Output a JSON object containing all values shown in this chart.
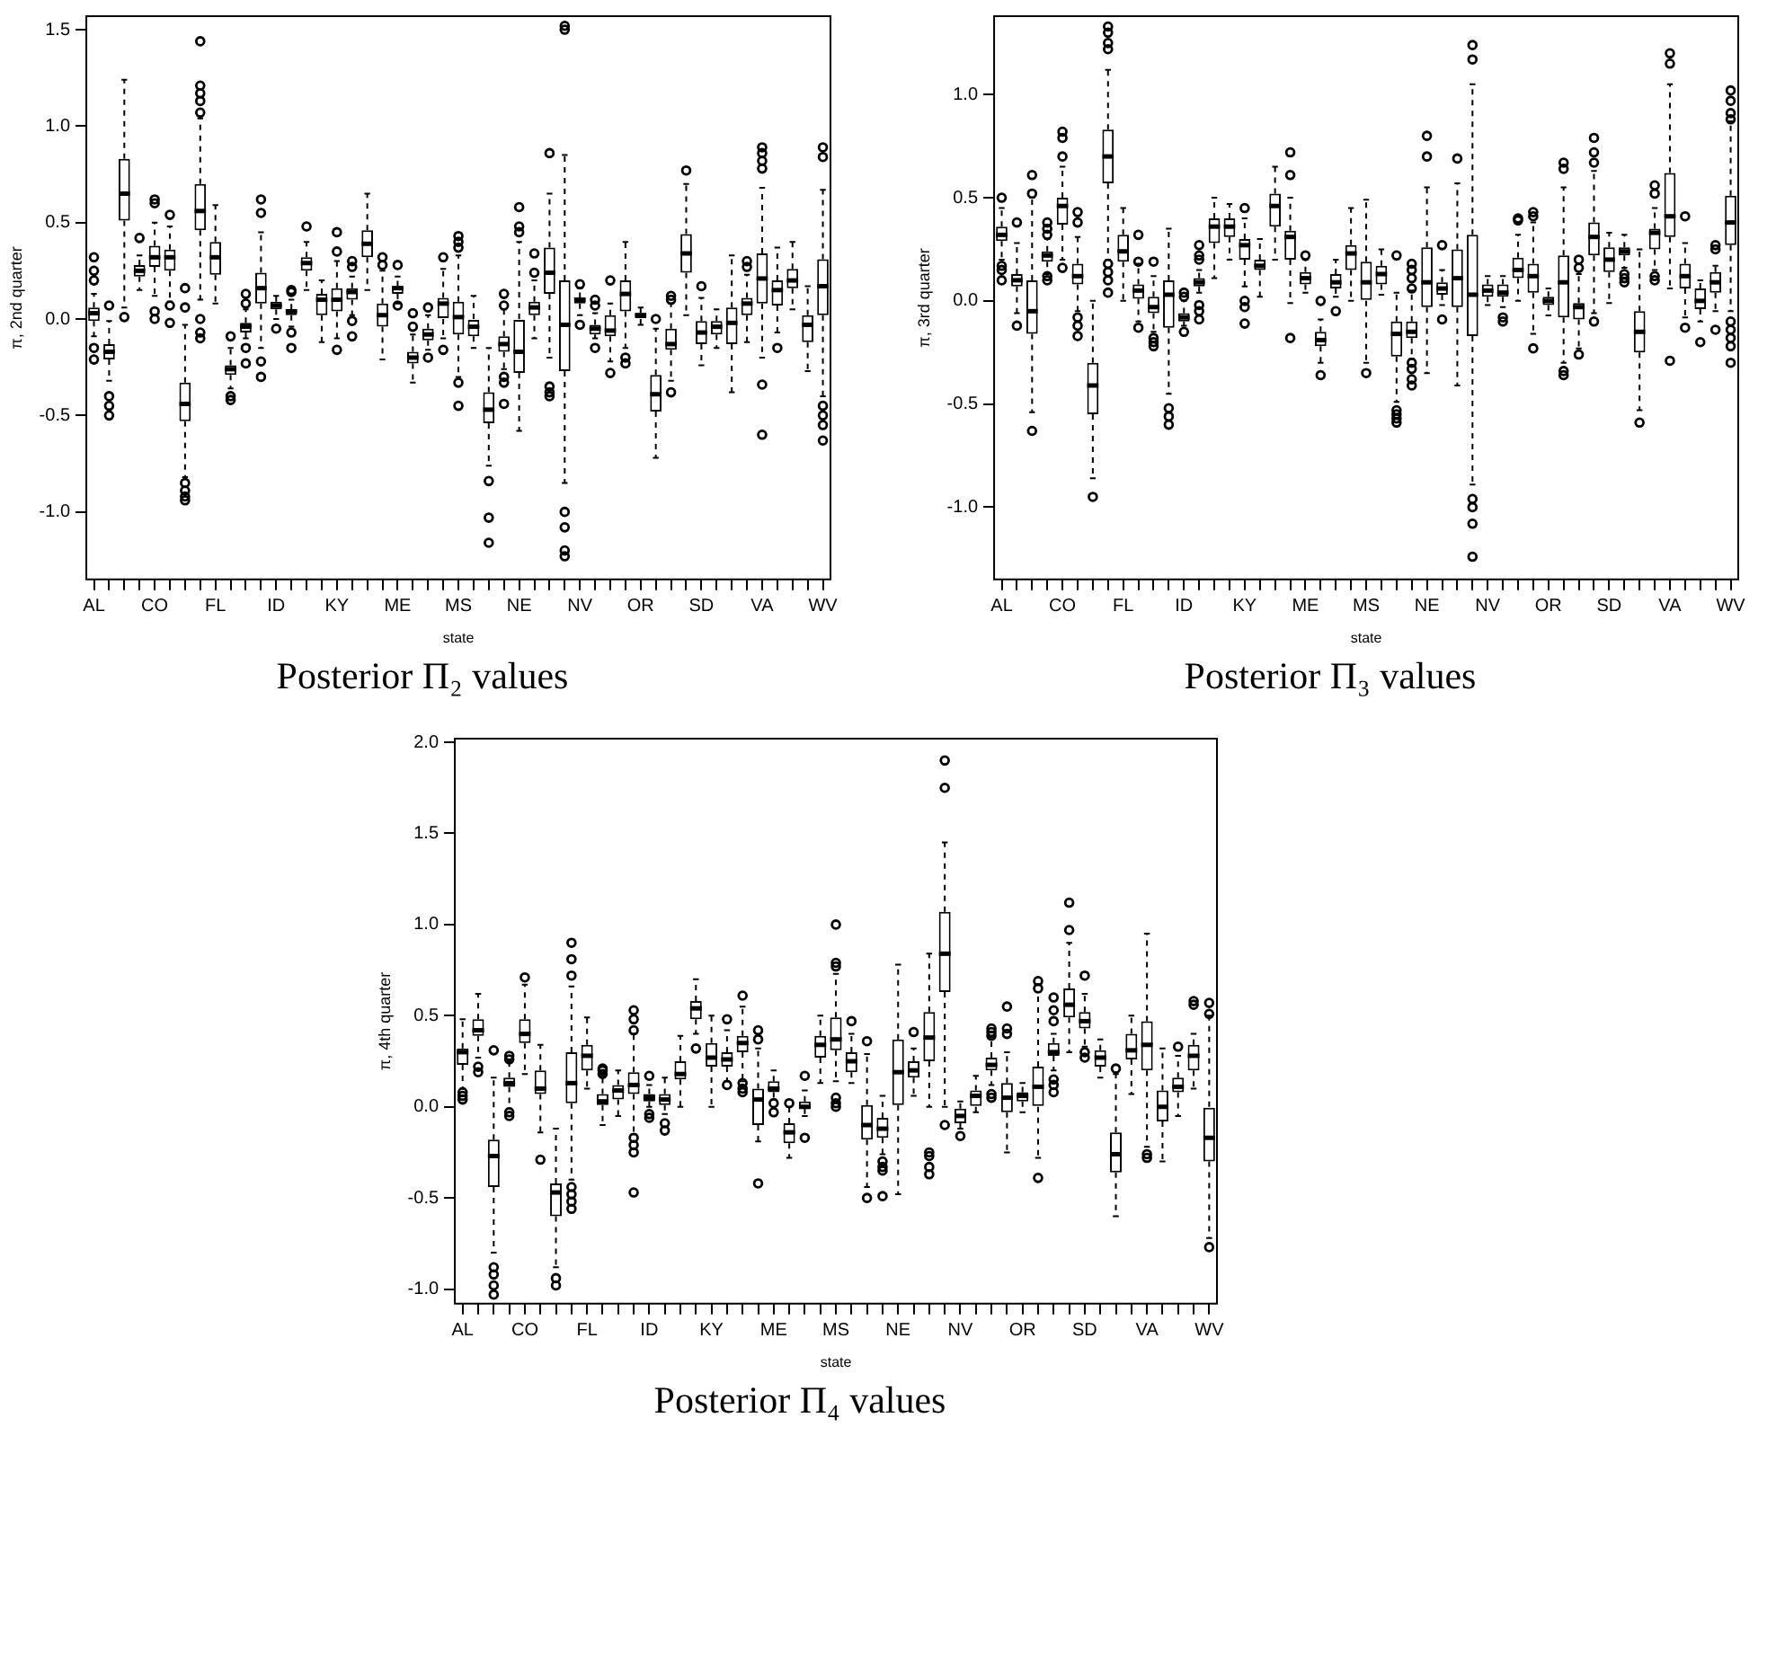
{
  "chart_data": [
    {
      "type": "box",
      "title": "Posterior Π₂ values",
      "xlabel": "state",
      "ylabel": "π, 2nd quarter",
      "categories": [
        "AL",
        null,
        null,
        null,
        "CO",
        null,
        null,
        null,
        "FL",
        null,
        null,
        null,
        "ID",
        null,
        null,
        null,
        "KY",
        null,
        null,
        null,
        "ME",
        null,
        null,
        null,
        "MS",
        null,
        null,
        null,
        "NE",
        null,
        null,
        null,
        "NV",
        null,
        null,
        null,
        "OR",
        null,
        null,
        null,
        "SD",
        null,
        null,
        null,
        "VA",
        null,
        null,
        null,
        "WV"
      ],
      "ylim": [
        -1.35,
        1.57
      ],
      "yticks": [
        {
          "value": -1,
          "label": "-1.0"
        },
        {
          "value": -0.5,
          "label": "-0.5"
        },
        {
          "value": 0,
          "label": "0.0"
        },
        {
          "value": 0.5,
          "label": "0.5"
        },
        {
          "value": 1,
          "label": "1.0"
        },
        {
          "value": 1.5,
          "label": "1.5"
        }
      ],
      "boxes": [
        {
          "low": -0.09,
          "q1": -0.01,
          "median": 0.03,
          "q3": 0.06,
          "high": 0.13,
          "outliers": [
            0.32,
            0.25,
            0.2,
            -0.15,
            -0.21
          ]
        },
        {
          "low": -0.32,
          "q1": -0.21,
          "median": -0.17,
          "q3": -0.13,
          "high": -0.01,
          "outliers": [
            0.07,
            -0.4,
            -0.45,
            -0.5
          ]
        },
        {
          "low": 0.06,
          "q1": 0.51,
          "median": 0.65,
          "q3": 0.83,
          "high": 1.24,
          "outliers": [
            0.01
          ]
        },
        {
          "low": 0.15,
          "q1": 0.22,
          "median": 0.25,
          "q3": 0.28,
          "high": 0.33,
          "outliers": [
            0.42
          ]
        },
        {
          "low": 0.12,
          "q1": 0.27,
          "median": 0.32,
          "q3": 0.38,
          "high": 0.5,
          "outliers": [
            0.62,
            0.6,
            0.04,
            0.0
          ]
        },
        {
          "low": 0.09,
          "q1": 0.25,
          "median": 0.32,
          "q3": 0.36,
          "high": 0.48,
          "outliers": [
            0.54,
            0.07,
            -0.02
          ]
        },
        {
          "low": -0.82,
          "q1": -0.53,
          "median": -0.44,
          "q3": -0.33,
          "high": -0.03,
          "outliers": [
            0.16,
            0.06,
            -0.85,
            -0.89,
            -0.92,
            -0.94
          ]
        },
        {
          "low": 0.1,
          "q1": 0.46,
          "median": 0.56,
          "q3": 0.7,
          "high": 1.04,
          "outliers": [
            1.44,
            1.21,
            1.17,
            1.13,
            1.07,
            0.0,
            -0.07,
            -0.1
          ]
        },
        {
          "low": 0.08,
          "q1": 0.23,
          "median": 0.32,
          "q3": 0.4,
          "high": 0.59
        },
        {
          "low": -0.36,
          "q1": -0.29,
          "median": -0.26,
          "q3": -0.24,
          "high": -0.15,
          "outliers": [
            -0.09,
            -0.4,
            -0.42
          ]
        },
        {
          "low": -0.1,
          "q1": -0.07,
          "median": -0.04,
          "q3": -0.02,
          "high": 0.05,
          "outliers": [
            0.13,
            0.08,
            -0.15,
            -0.23
          ]
        },
        {
          "low": -0.15,
          "q1": 0.08,
          "median": 0.16,
          "q3": 0.24,
          "high": 0.45,
          "outliers": [
            0.62,
            0.55,
            -0.22,
            -0.3
          ]
        },
        {
          "low": 0.0,
          "q1": 0.05,
          "median": 0.07,
          "q3": 0.09,
          "high": 0.12,
          "outliers": [
            -0.05
          ]
        },
        {
          "low": -0.04,
          "q1": 0.02,
          "median": 0.04,
          "q3": 0.05,
          "high": 0.1,
          "outliers": [
            0.15,
            0.14,
            -0.07,
            -0.15
          ]
        },
        {
          "low": 0.15,
          "q1": 0.25,
          "median": 0.29,
          "q3": 0.32,
          "high": 0.4,
          "outliers": [
            0.48
          ]
        },
        {
          "low": -0.12,
          "q1": 0.02,
          "median": 0.1,
          "q3": 0.13,
          "high": 0.2
        },
        {
          "low": -0.1,
          "q1": 0.04,
          "median": 0.1,
          "q3": 0.16,
          "high": 0.3,
          "outliers": [
            0.45,
            0.35,
            -0.16
          ]
        },
        {
          "low": 0.02,
          "q1": 0.1,
          "median": 0.14,
          "q3": 0.16,
          "high": 0.22,
          "outliers": [
            0.3,
            0.27,
            -0.01,
            -0.09
          ]
        },
        {
          "low": 0.15,
          "q1": 0.32,
          "median": 0.39,
          "q3": 0.46,
          "high": 0.65
        },
        {
          "low": -0.21,
          "q1": -0.04,
          "median": 0.02,
          "q3": 0.08,
          "high": 0.25,
          "outliers": [
            0.32,
            0.28
          ]
        },
        {
          "low": 0.08,
          "q1": 0.13,
          "median": 0.16,
          "q3": 0.17,
          "high": 0.22,
          "outliers": [
            0.28,
            0.07
          ]
        },
        {
          "low": -0.33,
          "q1": -0.23,
          "median": -0.2,
          "q3": -0.17,
          "high": -0.08,
          "outliers": [
            0.03,
            -0.04
          ]
        },
        {
          "low": -0.16,
          "q1": -0.11,
          "median": -0.08,
          "q3": -0.05,
          "high": 0.02,
          "outliers": [
            0.06,
            -0.2
          ]
        },
        {
          "low": -0.1,
          "q1": 0.0,
          "median": 0.08,
          "q3": 0.11,
          "high": 0.26,
          "outliers": [
            0.32,
            -0.16
          ]
        },
        {
          "low": -0.3,
          "q1": -0.08,
          "median": 0.01,
          "q3": 0.09,
          "high": 0.33,
          "outliers": [
            0.43,
            0.4,
            0.37,
            -0.33,
            -0.45
          ]
        },
        {
          "low": -0.15,
          "q1": -0.09,
          "median": -0.04,
          "q3": 0.0,
          "high": 0.12
        },
        {
          "low": -0.76,
          "q1": -0.54,
          "median": -0.47,
          "q3": -0.38,
          "high": -0.15,
          "outliers": [
            -0.84,
            -1.03,
            -1.16
          ]
        },
        {
          "low": -0.26,
          "q1": -0.17,
          "median": -0.13,
          "q3": -0.09,
          "high": 0.05,
          "outliers": [
            0.13,
            0.07,
            -0.3,
            -0.33,
            -0.44
          ]
        },
        {
          "low": -0.58,
          "q1": -0.28,
          "median": -0.17,
          "q3": 0.0,
          "high": 0.4,
          "outliers": [
            0.58,
            0.48,
            0.45
          ]
        },
        {
          "low": -0.1,
          "q1": 0.02,
          "median": 0.06,
          "q3": 0.09,
          "high": 0.2,
          "outliers": [
            0.34,
            0.24
          ]
        },
        {
          "low": -0.2,
          "q1": 0.13,
          "median": 0.24,
          "q3": 0.37,
          "high": 0.65,
          "outliers": [
            0.86,
            -0.35,
            -0.38,
            -0.4
          ]
        },
        {
          "low": -0.85,
          "q1": -0.27,
          "median": -0.03,
          "q3": 0.2,
          "high": 0.85,
          "outliers": [
            1.52,
            1.5,
            -1.0,
            -1.08,
            -1.2,
            -1.23
          ]
        },
        {
          "low": 0.02,
          "q1": 0.08,
          "median": 0.1,
          "q3": 0.11,
          "high": 0.16,
          "outliers": [
            0.18,
            -0.03
          ]
        },
        {
          "low": -0.1,
          "q1": -0.08,
          "median": -0.05,
          "q3": -0.03,
          "high": 0.03,
          "outliers": [
            0.1,
            0.07,
            -0.15
          ]
        },
        {
          "low": -0.22,
          "q1": -0.09,
          "median": -0.06,
          "q3": 0.02,
          "high": 0.08,
          "outliers": [
            0.2,
            -0.28
          ]
        },
        {
          "low": -0.15,
          "q1": 0.04,
          "median": 0.13,
          "q3": 0.2,
          "high": 0.4,
          "outliers": [
            -0.2,
            -0.23
          ]
        },
        {
          "low": -0.03,
          "q1": 0.0,
          "median": 0.02,
          "q3": 0.03,
          "high": 0.06
        },
        {
          "low": -0.72,
          "q1": -0.48,
          "median": -0.39,
          "q3": -0.29,
          "high": -0.05,
          "outliers": [
            0.0
          ]
        },
        {
          "low": -0.32,
          "q1": -0.16,
          "median": -0.13,
          "q3": -0.05,
          "high": 0.08,
          "outliers": [
            0.12,
            0.1,
            -0.38
          ]
        },
        {
          "low": 0.02,
          "q1": 0.24,
          "median": 0.34,
          "q3": 0.44,
          "high": 0.7,
          "outliers": [
            0.77
          ]
        },
        {
          "low": -0.24,
          "q1": -0.13,
          "median": -0.07,
          "q3": -0.01,
          "high": 0.11,
          "outliers": [
            0.17
          ]
        },
        {
          "low": -0.15,
          "q1": -0.08,
          "median": -0.04,
          "q3": -0.01,
          "high": 0.05
        },
        {
          "low": -0.38,
          "q1": -0.13,
          "median": -0.02,
          "q3": 0.06,
          "high": 0.33
        },
        {
          "low": -0.12,
          "q1": 0.02,
          "median": 0.08,
          "q3": 0.11,
          "high": 0.23,
          "outliers": [
            0.3,
            0.27
          ]
        },
        {
          "low": -0.2,
          "q1": 0.08,
          "median": 0.21,
          "q3": 0.34,
          "high": 0.68,
          "outliers": [
            0.89,
            0.86,
            0.82,
            0.78,
            -0.34,
            -0.6
          ]
        },
        {
          "low": -0.07,
          "q1": 0.07,
          "median": 0.15,
          "q3": 0.2,
          "high": 0.37,
          "outliers": [
            -0.15
          ]
        },
        {
          "low": 0.05,
          "q1": 0.16,
          "median": 0.2,
          "q3": 0.26,
          "high": 0.4
        },
        {
          "low": -0.27,
          "q1": -0.12,
          "median": -0.03,
          "q3": 0.02,
          "high": 0.17
        },
        {
          "low": -0.4,
          "q1": 0.02,
          "median": 0.17,
          "q3": 0.31,
          "high": 0.67,
          "outliers": [
            0.89,
            0.84,
            -0.45,
            -0.5,
            -0.55,
            -0.63
          ]
        }
      ]
    },
    {
      "type": "box",
      "title": "Posterior Π₃ values",
      "xlabel": "state",
      "ylabel": "π, 3rd quarter",
      "categories": [
        "AL",
        null,
        null,
        null,
        "CO",
        null,
        null,
        null,
        "FL",
        null,
        null,
        null,
        "ID",
        null,
        null,
        null,
        "KY",
        null,
        null,
        null,
        "ME",
        null,
        null,
        null,
        "MS",
        null,
        null,
        null,
        "NE",
        null,
        null,
        null,
        "NV",
        null,
        null,
        null,
        "OR",
        null,
        null,
        null,
        "SD",
        null,
        null,
        null,
        "VA",
        null,
        null,
        null,
        "WV"
      ],
      "ylim": [
        -1.35,
        1.38
      ],
      "yticks": [
        {
          "value": -1,
          "label": "-1.0"
        },
        {
          "value": -0.5,
          "label": "-0.5"
        },
        {
          "value": 0,
          "label": "0.0"
        },
        {
          "value": 0.5,
          "label": "0.5"
        },
        {
          "value": 1,
          "label": "1.0"
        }
      ],
      "boxes": [
        {
          "low": 0.2,
          "q1": 0.29,
          "median": 0.32,
          "q3": 0.36,
          "high": 0.45,
          "outliers": [
            0.5,
            0.17,
            0.15,
            0.1
          ]
        },
        {
          "low": -0.06,
          "q1": 0.07,
          "median": 0.1,
          "q3": 0.13,
          "high": 0.28,
          "outliers": [
            0.38,
            -0.12
          ]
        },
        {
          "low": -0.54,
          "q1": -0.16,
          "median": -0.05,
          "q3": 0.1,
          "high": 0.5,
          "outliers": [
            0.61,
            0.52,
            -0.63
          ]
        },
        {
          "low": 0.13,
          "q1": 0.19,
          "median": 0.22,
          "q3": 0.24,
          "high": 0.3,
          "outliers": [
            0.38,
            0.35,
            0.32,
            0.12,
            0.1
          ]
        },
        {
          "low": 0.2,
          "q1": 0.37,
          "median": 0.46,
          "q3": 0.5,
          "high": 0.65,
          "outliers": [
            0.82,
            0.79,
            0.7,
            0.16
          ]
        },
        {
          "low": -0.05,
          "q1": 0.08,
          "median": 0.12,
          "q3": 0.18,
          "high": 0.31,
          "outliers": [
            0.43,
            0.38,
            -0.08,
            -0.12,
            -0.17
          ]
        },
        {
          "low": -0.86,
          "q1": -0.55,
          "median": -0.41,
          "q3": -0.3,
          "high": 0.0,
          "outliers": [
            -0.95
          ]
        },
        {
          "low": 0.2,
          "q1": 0.57,
          "median": 0.7,
          "q3": 0.83,
          "high": 1.12,
          "outliers": [
            1.33,
            1.3,
            1.25,
            1.22,
            0.18,
            0.14,
            0.1,
            0.04
          ]
        },
        {
          "low": 0.0,
          "q1": 0.19,
          "median": 0.24,
          "q3": 0.32,
          "high": 0.45
        },
        {
          "low": -0.1,
          "q1": 0.01,
          "median": 0.05,
          "q3": 0.08,
          "high": 0.18,
          "outliers": [
            0.32,
            0.19,
            -0.13
          ]
        },
        {
          "low": -0.15,
          "q1": -0.06,
          "median": -0.03,
          "q3": 0.02,
          "high": 0.12,
          "outliers": [
            0.19,
            -0.18,
            -0.2,
            -0.22
          ]
        },
        {
          "low": -0.45,
          "q1": -0.13,
          "median": 0.03,
          "q3": 0.1,
          "high": 0.35,
          "outliers": [
            -0.52,
            -0.56,
            -0.6
          ]
        },
        {
          "low": -0.12,
          "q1": -0.1,
          "median": -0.08,
          "q3": -0.06,
          "high": 0.0,
          "outliers": [
            0.04,
            0.02,
            -0.15
          ]
        },
        {
          "low": 0.04,
          "q1": 0.07,
          "median": 0.09,
          "q3": 0.11,
          "high": 0.15,
          "outliers": [
            0.27,
            0.22,
            0.2,
            -0.02,
            -0.05,
            -0.09
          ]
        },
        {
          "low": 0.11,
          "q1": 0.28,
          "median": 0.36,
          "q3": 0.4,
          "high": 0.5
        },
        {
          "low": 0.2,
          "q1": 0.31,
          "median": 0.36,
          "q3": 0.4,
          "high": 0.47
        },
        {
          "low": 0.07,
          "q1": 0.2,
          "median": 0.27,
          "q3": 0.3,
          "high": 0.4,
          "outliers": [
            0.45,
            0.0,
            -0.03,
            -0.11
          ]
        },
        {
          "low": 0.02,
          "q1": 0.15,
          "median": 0.17,
          "q3": 0.2,
          "high": 0.3
        },
        {
          "low": 0.2,
          "q1": 0.36,
          "median": 0.46,
          "q3": 0.52,
          "high": 0.65
        },
        {
          "low": -0.01,
          "q1": 0.2,
          "median": 0.31,
          "q3": 0.34,
          "high": 0.5,
          "outliers": [
            0.72,
            0.61,
            -0.18
          ]
        },
        {
          "low": 0.04,
          "q1": 0.08,
          "median": 0.11,
          "q3": 0.14,
          "high": 0.2,
          "outliers": [
            0.22
          ]
        },
        {
          "low": -0.3,
          "q1": -0.22,
          "median": -0.19,
          "q3": -0.15,
          "high": -0.09,
          "outliers": [
            0.0,
            -0.36
          ]
        },
        {
          "low": 0.02,
          "q1": 0.06,
          "median": 0.09,
          "q3": 0.13,
          "high": 0.2,
          "outliers": [
            -0.05
          ]
        },
        {
          "low": 0.0,
          "q1": 0.15,
          "median": 0.23,
          "q3": 0.27,
          "high": 0.45
        },
        {
          "low": -0.3,
          "q1": 0.0,
          "median": 0.09,
          "q3": 0.19,
          "high": 0.49,
          "outliers": [
            -0.35
          ]
        },
        {
          "low": 0.03,
          "q1": 0.08,
          "median": 0.13,
          "q3": 0.17,
          "high": 0.25
        },
        {
          "low": -0.49,
          "q1": -0.27,
          "median": -0.16,
          "q3": -0.1,
          "high": 0.04,
          "outliers": [
            0.22,
            -0.53,
            -0.55,
            -0.57,
            -0.59
          ]
        },
        {
          "low": -0.28,
          "q1": -0.18,
          "median": -0.15,
          "q3": -0.1,
          "high": 0.05,
          "outliers": [
            0.18,
            0.15,
            0.11,
            0.06,
            -0.3,
            -0.33,
            -0.38,
            -0.41
          ]
        },
        {
          "low": -0.35,
          "q1": -0.03,
          "median": 0.09,
          "q3": 0.26,
          "high": 0.55,
          "outliers": [
            0.8,
            0.7
          ]
        },
        {
          "low": -0.02,
          "q1": 0.03,
          "median": 0.06,
          "q3": 0.09,
          "high": 0.15,
          "outliers": [
            0.27,
            -0.09
          ]
        },
        {
          "low": -0.41,
          "q1": -0.03,
          "median": 0.11,
          "q3": 0.25,
          "high": 0.57,
          "outliers": [
            0.69
          ]
        },
        {
          "low": -0.89,
          "q1": -0.17,
          "median": 0.03,
          "q3": 0.32,
          "high": 1.05,
          "outliers": [
            1.24,
            1.17,
            -0.96,
            -1.0,
            -1.08,
            -1.24
          ]
        },
        {
          "low": -0.02,
          "q1": 0.02,
          "median": 0.05,
          "q3": 0.08,
          "high": 0.12
        },
        {
          "low": -0.03,
          "q1": 0.02,
          "median": 0.04,
          "q3": 0.08,
          "high": 0.12,
          "outliers": [
            -0.08,
            -0.1
          ]
        },
        {
          "low": 0.0,
          "q1": 0.11,
          "median": 0.15,
          "q3": 0.21,
          "high": 0.32,
          "outliers": [
            0.4,
            0.39
          ]
        },
        {
          "low": -0.16,
          "q1": 0.04,
          "median": 0.12,
          "q3": 0.18,
          "high": 0.38,
          "outliers": [
            0.43,
            0.41,
            -0.23
          ]
        },
        {
          "low": -0.07,
          "q1": -0.02,
          "median": 0.0,
          "q3": 0.02,
          "high": 0.06
        },
        {
          "low": -0.3,
          "q1": -0.08,
          "median": 0.09,
          "q3": 0.22,
          "high": 0.55,
          "outliers": [
            0.67,
            0.64,
            -0.34,
            -0.36
          ]
        },
        {
          "low": -0.23,
          "q1": -0.09,
          "median": -0.03,
          "q3": -0.01,
          "high": 0.13,
          "outliers": [
            0.2,
            0.16,
            -0.26
          ]
        },
        {
          "low": -0.06,
          "q1": 0.22,
          "median": 0.31,
          "q3": 0.38,
          "high": 0.63,
          "outliers": [
            0.79,
            0.72,
            0.67,
            -0.1
          ]
        },
        {
          "low": -0.01,
          "q1": 0.14,
          "median": 0.2,
          "q3": 0.26,
          "high": 0.33
        },
        {
          "low": 0.16,
          "q1": 0.22,
          "median": 0.24,
          "q3": 0.26,
          "high": 0.32,
          "outliers": [
            0.13,
            0.11,
            0.09
          ]
        },
        {
          "low": -0.53,
          "q1": -0.25,
          "median": -0.15,
          "q3": -0.05,
          "high": 0.25,
          "outliers": [
            -0.59
          ]
        },
        {
          "low": 0.15,
          "q1": 0.25,
          "median": 0.33,
          "q3": 0.35,
          "high": 0.45,
          "outliers": [
            0.56,
            0.52,
            0.12,
            0.1
          ]
        },
        {
          "low": 0.06,
          "q1": 0.31,
          "median": 0.41,
          "q3": 0.62,
          "high": 1.05,
          "outliers": [
            1.2,
            1.15,
            -0.29
          ]
        },
        {
          "low": -0.08,
          "q1": 0.06,
          "median": 0.12,
          "q3": 0.18,
          "high": 0.28,
          "outliers": [
            0.41,
            -0.13
          ]
        },
        {
          "low": -0.1,
          "q1": -0.04,
          "median": 0.0,
          "q3": 0.06,
          "high": 0.1,
          "outliers": [
            -0.2
          ]
        },
        {
          "low": -0.05,
          "q1": 0.04,
          "median": 0.09,
          "q3": 0.14,
          "high": 0.17,
          "outliers": [
            0.27,
            0.25,
            -0.14
          ]
        },
        {
          "low": -0.05,
          "q1": 0.27,
          "median": 0.38,
          "q3": 0.51,
          "high": 0.87,
          "outliers": [
            1.02,
            0.97,
            0.91,
            0.88,
            -0.1,
            -0.14,
            -0.18,
            -0.22,
            -0.3
          ]
        }
      ]
    },
    {
      "type": "box",
      "title": "Posterior Π₄ values",
      "xlabel": "state",
      "ylabel": "π, 4th quarter",
      "categories": [
        "AL",
        null,
        null,
        null,
        "CO",
        null,
        null,
        null,
        "FL",
        null,
        null,
        null,
        "ID",
        null,
        null,
        null,
        "KY",
        null,
        null,
        null,
        "ME",
        null,
        null,
        null,
        "MS",
        null,
        null,
        null,
        "NE",
        null,
        null,
        null,
        "NV",
        null,
        null,
        null,
        "OR",
        null,
        null,
        null,
        "SD",
        null,
        null,
        null,
        "VA",
        null,
        null,
        null,
        "WV"
      ],
      "ylim": [
        -1.08,
        2.02
      ],
      "yticks": [
        {
          "value": -1,
          "label": "-1.0"
        },
        {
          "value": -0.5,
          "label": "-0.5"
        },
        {
          "value": 0,
          "label": "0.0"
        },
        {
          "value": 0.5,
          "label": "0.5"
        },
        {
          "value": 1,
          "label": "1.0"
        },
        {
          "value": 1.5,
          "label": "1.5"
        },
        {
          "value": 2,
          "label": "2.0"
        }
      ],
      "boxes": [
        {
          "low": 0.1,
          "q1": 0.23,
          "median": 0.3,
          "q3": 0.32,
          "high": 0.48,
          "outliers": [
            0.08,
            0.06,
            0.04
          ]
        },
        {
          "low": 0.27,
          "q1": 0.39,
          "median": 0.42,
          "q3": 0.48,
          "high": 0.62,
          "outliers": [
            0.22,
            0.19
          ]
        },
        {
          "low": -0.8,
          "q1": -0.44,
          "median": -0.27,
          "q3": -0.18,
          "high": 0.16,
          "outliers": [
            0.31,
            -0.88,
            -0.92,
            -0.98,
            -1.03
          ]
        },
        {
          "low": -0.01,
          "q1": 0.11,
          "median": 0.13,
          "q3": 0.16,
          "high": 0.25,
          "outliers": [
            0.28,
            0.26,
            -0.03,
            -0.05
          ]
        },
        {
          "low": 0.18,
          "q1": 0.35,
          "median": 0.4,
          "q3": 0.48,
          "high": 0.67,
          "outliers": [
            0.71
          ]
        },
        {
          "low": -0.14,
          "q1": 0.07,
          "median": 0.1,
          "q3": 0.2,
          "high": 0.34,
          "outliers": [
            -0.29
          ]
        },
        {
          "low": -0.88,
          "q1": -0.6,
          "median": -0.47,
          "q3": -0.42,
          "high": -0.12,
          "outliers": [
            -0.94,
            -0.98
          ]
        },
        {
          "low": -0.4,
          "q1": 0.02,
          "median": 0.13,
          "q3": 0.3,
          "high": 0.66,
          "outliers": [
            0.9,
            0.81,
            0.72,
            -0.44,
            -0.48,
            -0.52,
            -0.56
          ]
        },
        {
          "low": 0.1,
          "q1": 0.2,
          "median": 0.28,
          "q3": 0.34,
          "high": 0.49
        },
        {
          "low": -0.1,
          "q1": 0.01,
          "median": 0.03,
          "q3": 0.07,
          "high": 0.17,
          "outliers": [
            0.21,
            0.2,
            0.18
          ]
        },
        {
          "low": -0.05,
          "q1": 0.04,
          "median": 0.09,
          "q3": 0.12,
          "high": 0.2
        },
        {
          "low": -0.15,
          "q1": 0.07,
          "median": 0.12,
          "q3": 0.19,
          "high": 0.4,
          "outliers": [
            0.53,
            0.48,
            0.42,
            -0.17,
            -0.21,
            -0.25,
            -0.47
          ]
        },
        {
          "low": 0.0,
          "q1": 0.03,
          "median": 0.05,
          "q3": 0.07,
          "high": 0.12,
          "outliers": [
            0.17,
            -0.04,
            -0.06
          ]
        },
        {
          "low": -0.04,
          "q1": 0.01,
          "median": 0.04,
          "q3": 0.07,
          "high": 0.16,
          "outliers": [
            -0.09,
            -0.13
          ]
        },
        {
          "low": 0.0,
          "q1": 0.15,
          "median": 0.18,
          "q3": 0.25,
          "high": 0.39
        },
        {
          "low": 0.4,
          "q1": 0.48,
          "median": 0.54,
          "q3": 0.58,
          "high": 0.7,
          "outliers": [
            0.32
          ]
        },
        {
          "low": 0.0,
          "q1": 0.22,
          "median": 0.27,
          "q3": 0.35,
          "high": 0.5
        },
        {
          "low": 0.14,
          "q1": 0.22,
          "median": 0.26,
          "q3": 0.3,
          "high": 0.42,
          "outliers": [
            0.48,
            0.12
          ]
        },
        {
          "low": 0.14,
          "q1": 0.3,
          "median": 0.35,
          "q3": 0.39,
          "high": 0.55,
          "outliers": [
            0.61,
            0.13,
            0.1,
            0.08
          ]
        },
        {
          "low": -0.19,
          "q1": -0.1,
          "median": 0.04,
          "q3": 0.1,
          "high": 0.32,
          "outliers": [
            0.42,
            0.37,
            -0.42
          ]
        },
        {
          "low": 0.04,
          "q1": 0.08,
          "median": 0.1,
          "q3": 0.14,
          "high": 0.2,
          "outliers": [
            0.02,
            -0.03
          ]
        },
        {
          "low": -0.28,
          "q1": -0.2,
          "median": -0.14,
          "q3": -0.09,
          "high": 0.0,
          "outliers": [
            0.02
          ]
        },
        {
          "low": -0.05,
          "q1": -0.01,
          "median": 0.0,
          "q3": 0.03,
          "high": 0.09,
          "outliers": [
            0.17,
            -0.17
          ]
        },
        {
          "low": 0.13,
          "q1": 0.27,
          "median": 0.34,
          "q3": 0.39,
          "high": 0.5
        },
        {
          "low": 0.14,
          "q1": 0.31,
          "median": 0.37,
          "q3": 0.49,
          "high": 0.73,
          "outliers": [
            1.0,
            0.79,
            0.77,
            0.05,
            0.02,
            0.0
          ]
        },
        {
          "low": 0.13,
          "q1": 0.19,
          "median": 0.25,
          "q3": 0.3,
          "high": 0.4,
          "outliers": [
            0.47
          ]
        },
        {
          "low": -0.44,
          "q1": -0.18,
          "median": -0.1,
          "q3": 0.01,
          "high": 0.29,
          "outliers": [
            0.36,
            -0.5
          ]
        },
        {
          "low": -0.26,
          "q1": -0.17,
          "median": -0.12,
          "q3": -0.06,
          "high": 0.06,
          "outliers": [
            -0.3,
            -0.33,
            -0.35,
            -0.49
          ]
        },
        {
          "low": -0.48,
          "q1": 0.01,
          "median": 0.19,
          "q3": 0.37,
          "high": 0.78
        },
        {
          "low": 0.06,
          "q1": 0.16,
          "median": 0.2,
          "q3": 0.25,
          "high": 0.32,
          "outliers": [
            0.41
          ]
        },
        {
          "low": 0.0,
          "q1": 0.25,
          "median": 0.38,
          "q3": 0.52,
          "high": 0.84,
          "outliers": [
            -0.25,
            -0.27,
            -0.33,
            -0.37
          ]
        },
        {
          "low": 0.0,
          "q1": 0.63,
          "median": 0.84,
          "q3": 1.07,
          "high": 1.45,
          "outliers": [
            1.9,
            1.75,
            -0.1
          ]
        },
        {
          "low": -0.12,
          "q1": -0.09,
          "median": -0.05,
          "q3": -0.01,
          "high": 0.03,
          "outliers": [
            -0.16
          ]
        },
        {
          "low": -0.03,
          "q1": 0.0,
          "median": 0.06,
          "q3": 0.09,
          "high": 0.17
        },
        {
          "low": 0.12,
          "q1": 0.2,
          "median": 0.23,
          "q3": 0.27,
          "high": 0.38,
          "outliers": [
            0.43,
            0.41,
            0.39,
            0.07,
            0.05
          ]
        },
        {
          "low": -0.25,
          "q1": -0.03,
          "median": 0.05,
          "q3": 0.13,
          "high": 0.3,
          "outliers": [
            0.55,
            0.43,
            0.4
          ]
        },
        {
          "low": -0.03,
          "q1": 0.03,
          "median": 0.06,
          "q3": 0.08,
          "high": 0.13
        },
        {
          "low": -0.28,
          "q1": 0.0,
          "median": 0.11,
          "q3": 0.22,
          "high": 0.63,
          "outliers": [
            0.69,
            0.65,
            -0.39
          ]
        },
        {
          "low": 0.2,
          "q1": 0.28,
          "median": 0.3,
          "q3": 0.35,
          "high": 0.4,
          "outliers": [
            0.6,
            0.53,
            0.47,
            0.15,
            0.12,
            0.08
          ]
        },
        {
          "low": 0.3,
          "q1": 0.49,
          "median": 0.56,
          "q3": 0.65,
          "high": 0.9,
          "outliers": [
            1.12,
            0.97
          ]
        },
        {
          "low": 0.33,
          "q1": 0.43,
          "median": 0.47,
          "q3": 0.52,
          "high": 0.62,
          "outliers": [
            0.72,
            0.3,
            0.27
          ]
        },
        {
          "low": 0.16,
          "q1": 0.22,
          "median": 0.27,
          "q3": 0.31,
          "high": 0.37
        },
        {
          "low": -0.6,
          "q1": -0.36,
          "median": -0.26,
          "q3": -0.14,
          "high": 0.18,
          "outliers": [
            0.21
          ]
        },
        {
          "low": 0.07,
          "q1": 0.26,
          "median": 0.31,
          "q3": 0.4,
          "high": 0.5
        },
        {
          "low": -0.22,
          "q1": 0.2,
          "median": 0.34,
          "q3": 0.47,
          "high": 0.95,
          "outliers": [
            -0.26,
            -0.28
          ]
        },
        {
          "low": -0.3,
          "q1": -0.08,
          "median": 0.0,
          "q3": 0.09,
          "high": 0.32
        },
        {
          "low": -0.05,
          "q1": 0.08,
          "median": 0.11,
          "q3": 0.16,
          "high": 0.28,
          "outliers": [
            0.33
          ]
        },
        {
          "low": 0.1,
          "q1": 0.2,
          "median": 0.28,
          "q3": 0.34,
          "high": 0.4,
          "outliers": [
            0.58,
            0.56
          ]
        },
        {
          "low": -0.72,
          "q1": -0.3,
          "median": -0.17,
          "q3": 0.0,
          "high": 0.5,
          "outliers": [
            0.57,
            0.51,
            -0.77
          ]
        }
      ]
    }
  ]
}
